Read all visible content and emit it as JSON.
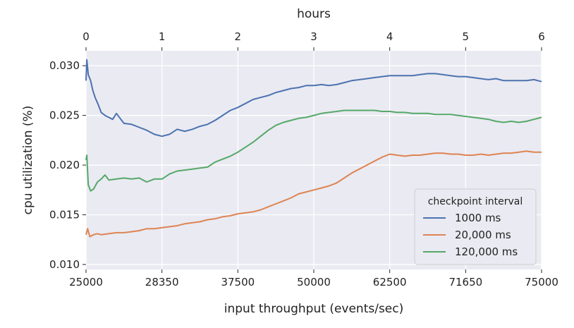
{
  "chart_data": {
    "type": "line",
    "xlabel": "input throughput (events/sec)",
    "ylabel": "cpu utilization (%)",
    "x2label": "hours",
    "xlim": [
      0,
      6
    ],
    "ylim": [
      0.0095,
      0.0315
    ],
    "x_ticks": [
      {
        "pos": 0,
        "label": "25000"
      },
      {
        "pos": 1,
        "label": "28350"
      },
      {
        "pos": 2,
        "label": "37500"
      },
      {
        "pos": 3,
        "label": "50000"
      },
      {
        "pos": 4,
        "label": "62500"
      },
      {
        "pos": 5,
        "label": "71650"
      },
      {
        "pos": 6,
        "label": "75000"
      }
    ],
    "x2_ticks": [
      {
        "pos": 0,
        "label": "0"
      },
      {
        "pos": 1,
        "label": "1"
      },
      {
        "pos": 2,
        "label": "2"
      },
      {
        "pos": 3,
        "label": "3"
      },
      {
        "pos": 4,
        "label": "4"
      },
      {
        "pos": 5,
        "label": "5"
      },
      {
        "pos": 6,
        "label": "6"
      }
    ],
    "y_ticks": [
      {
        "value": 0.01,
        "label": "0.010"
      },
      {
        "value": 0.015,
        "label": "0.015"
      },
      {
        "value": 0.02,
        "label": "0.020"
      },
      {
        "value": 0.025,
        "label": "0.025"
      },
      {
        "value": 0.03,
        "label": "0.030"
      }
    ],
    "grid": true,
    "legend": {
      "title": "checkpoint interval",
      "placement": "lower-right"
    },
    "series": [
      {
        "name": "1000 ms",
        "color": "#4c72b0",
        "points": [
          [
            0,
            0.0285
          ],
          [
            0.01,
            0.0306
          ],
          [
            0.03,
            0.0291
          ],
          [
            0.06,
            0.0285
          ],
          [
            0.09,
            0.0275
          ],
          [
            0.12,
            0.0268
          ],
          [
            0.16,
            0.0261
          ],
          [
            0.2,
            0.0253
          ],
          [
            0.25,
            0.025
          ],
          [
            0.3,
            0.0248
          ],
          [
            0.35,
            0.0246
          ],
          [
            0.4,
            0.0252
          ],
          [
            0.45,
            0.0247
          ],
          [
            0.5,
            0.0242
          ],
          [
            0.6,
            0.0241
          ],
          [
            0.7,
            0.0238
          ],
          [
            0.8,
            0.0235
          ],
          [
            0.9,
            0.0231
          ],
          [
            1.0,
            0.0229
          ],
          [
            1.1,
            0.0231
          ],
          [
            1.2,
            0.0236
          ],
          [
            1.3,
            0.0234
          ],
          [
            1.4,
            0.0236
          ],
          [
            1.5,
            0.0239
          ],
          [
            1.6,
            0.0241
          ],
          [
            1.7,
            0.0245
          ],
          [
            1.8,
            0.025
          ],
          [
            1.9,
            0.0255
          ],
          [
            2.0,
            0.0258
          ],
          [
            2.1,
            0.0262
          ],
          [
            2.2,
            0.0266
          ],
          [
            2.3,
            0.0268
          ],
          [
            2.4,
            0.027
          ],
          [
            2.5,
            0.0273
          ],
          [
            2.6,
            0.0275
          ],
          [
            2.7,
            0.0277
          ],
          [
            2.8,
            0.0278
          ],
          [
            2.9,
            0.028
          ],
          [
            3.0,
            0.028
          ],
          [
            3.1,
            0.0281
          ],
          [
            3.2,
            0.028
          ],
          [
            3.3,
            0.0281
          ],
          [
            3.4,
            0.0283
          ],
          [
            3.5,
            0.0285
          ],
          [
            3.6,
            0.0286
          ],
          [
            3.7,
            0.0287
          ],
          [
            3.8,
            0.0288
          ],
          [
            3.9,
            0.0289
          ],
          [
            4.0,
            0.029
          ],
          [
            4.1,
            0.029
          ],
          [
            4.2,
            0.029
          ],
          [
            4.3,
            0.029
          ],
          [
            4.4,
            0.0291
          ],
          [
            4.5,
            0.0292
          ],
          [
            4.6,
            0.0292
          ],
          [
            4.7,
            0.0291
          ],
          [
            4.8,
            0.029
          ],
          [
            4.9,
            0.0289
          ],
          [
            5.0,
            0.0289
          ],
          [
            5.1,
            0.0288
          ],
          [
            5.2,
            0.0287
          ],
          [
            5.3,
            0.0286
          ],
          [
            5.4,
            0.0287
          ],
          [
            5.5,
            0.0285
          ],
          [
            5.6,
            0.0285
          ],
          [
            5.7,
            0.0285
          ],
          [
            5.8,
            0.0285
          ],
          [
            5.9,
            0.0286
          ],
          [
            6.0,
            0.0284
          ]
        ]
      },
      {
        "name": "20,000 ms",
        "color": "#dd8452",
        "points": [
          [
            0,
            0.013
          ],
          [
            0.02,
            0.0136
          ],
          [
            0.05,
            0.0128
          ],
          [
            0.1,
            0.013
          ],
          [
            0.15,
            0.0131
          ],
          [
            0.2,
            0.013
          ],
          [
            0.3,
            0.0131
          ],
          [
            0.4,
            0.0132
          ],
          [
            0.5,
            0.0132
          ],
          [
            0.6,
            0.0133
          ],
          [
            0.7,
            0.0134
          ],
          [
            0.8,
            0.0136
          ],
          [
            0.9,
            0.0136
          ],
          [
            1.0,
            0.0137
          ],
          [
            1.1,
            0.0138
          ],
          [
            1.2,
            0.0139
          ],
          [
            1.3,
            0.0141
          ],
          [
            1.4,
            0.0142
          ],
          [
            1.5,
            0.0143
          ],
          [
            1.6,
            0.0145
          ],
          [
            1.7,
            0.0146
          ],
          [
            1.8,
            0.0148
          ],
          [
            1.9,
            0.0149
          ],
          [
            2.0,
            0.0151
          ],
          [
            2.1,
            0.0152
          ],
          [
            2.2,
            0.0153
          ],
          [
            2.3,
            0.0155
          ],
          [
            2.4,
            0.0158
          ],
          [
            2.5,
            0.0161
          ],
          [
            2.6,
            0.0164
          ],
          [
            2.7,
            0.0167
          ],
          [
            2.8,
            0.0171
          ],
          [
            2.9,
            0.0173
          ],
          [
            3.0,
            0.0175
          ],
          [
            3.1,
            0.0177
          ],
          [
            3.2,
            0.0179
          ],
          [
            3.3,
            0.0182
          ],
          [
            3.4,
            0.0187
          ],
          [
            3.5,
            0.0192
          ],
          [
            3.6,
            0.0196
          ],
          [
            3.7,
            0.02
          ],
          [
            3.8,
            0.0204
          ],
          [
            3.9,
            0.0208
          ],
          [
            4.0,
            0.0211
          ],
          [
            4.1,
            0.021
          ],
          [
            4.2,
            0.0209
          ],
          [
            4.3,
            0.021
          ],
          [
            4.4,
            0.021
          ],
          [
            4.5,
            0.0211
          ],
          [
            4.6,
            0.0212
          ],
          [
            4.7,
            0.0212
          ],
          [
            4.8,
            0.0211
          ],
          [
            4.9,
            0.0211
          ],
          [
            5.0,
            0.021
          ],
          [
            5.1,
            0.021
          ],
          [
            5.2,
            0.0211
          ],
          [
            5.3,
            0.021
          ],
          [
            5.4,
            0.0211
          ],
          [
            5.5,
            0.0212
          ],
          [
            5.6,
            0.0212
          ],
          [
            5.7,
            0.0213
          ],
          [
            5.8,
            0.0214
          ],
          [
            5.9,
            0.0213
          ],
          [
            6.0,
            0.0213
          ]
        ]
      },
      {
        "name": "120,000 ms",
        "color": "#55a868",
        "points": [
          [
            0,
            0.0205
          ],
          [
            0.01,
            0.021
          ],
          [
            0.03,
            0.018
          ],
          [
            0.06,
            0.0174
          ],
          [
            0.1,
            0.0176
          ],
          [
            0.15,
            0.0183
          ],
          [
            0.2,
            0.0186
          ],
          [
            0.25,
            0.019
          ],
          [
            0.3,
            0.0185
          ],
          [
            0.4,
            0.0186
          ],
          [
            0.5,
            0.0187
          ],
          [
            0.6,
            0.0186
          ],
          [
            0.7,
            0.0187
          ],
          [
            0.8,
            0.0183
          ],
          [
            0.9,
            0.0186
          ],
          [
            1.0,
            0.0186
          ],
          [
            1.1,
            0.0191
          ],
          [
            1.2,
            0.0194
          ],
          [
            1.3,
            0.0195
          ],
          [
            1.4,
            0.0196
          ],
          [
            1.5,
            0.0197
          ],
          [
            1.6,
            0.0198
          ],
          [
            1.7,
            0.0203
          ],
          [
            1.8,
            0.0206
          ],
          [
            1.9,
            0.0209
          ],
          [
            2.0,
            0.0213
          ],
          [
            2.1,
            0.0218
          ],
          [
            2.2,
            0.0223
          ],
          [
            2.3,
            0.0229
          ],
          [
            2.4,
            0.0235
          ],
          [
            2.5,
            0.024
          ],
          [
            2.6,
            0.0243
          ],
          [
            2.7,
            0.0245
          ],
          [
            2.8,
            0.0247
          ],
          [
            2.9,
            0.0248
          ],
          [
            3.0,
            0.025
          ],
          [
            3.1,
            0.0252
          ],
          [
            3.2,
            0.0253
          ],
          [
            3.3,
            0.0254
          ],
          [
            3.4,
            0.0255
          ],
          [
            3.5,
            0.0255
          ],
          [
            3.6,
            0.0255
          ],
          [
            3.7,
            0.0255
          ],
          [
            3.8,
            0.0255
          ],
          [
            3.9,
            0.0254
          ],
          [
            4.0,
            0.0254
          ],
          [
            4.1,
            0.0253
          ],
          [
            4.2,
            0.0253
          ],
          [
            4.3,
            0.0252
          ],
          [
            4.4,
            0.0252
          ],
          [
            4.5,
            0.0252
          ],
          [
            4.6,
            0.0251
          ],
          [
            4.7,
            0.0251
          ],
          [
            4.8,
            0.0251
          ],
          [
            4.9,
            0.025
          ],
          [
            5.0,
            0.0249
          ],
          [
            5.1,
            0.0248
          ],
          [
            5.2,
            0.0247
          ],
          [
            5.3,
            0.0246
          ],
          [
            5.4,
            0.0244
          ],
          [
            5.5,
            0.0243
          ],
          [
            5.6,
            0.0244
          ],
          [
            5.7,
            0.0243
          ],
          [
            5.8,
            0.0244
          ],
          [
            5.9,
            0.0246
          ],
          [
            6.0,
            0.0248
          ]
        ]
      }
    ]
  }
}
